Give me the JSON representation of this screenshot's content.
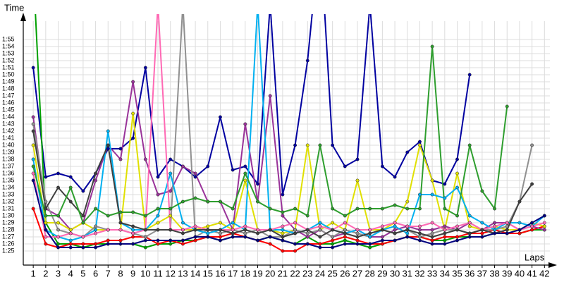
{
  "chart_data": {
    "type": "line",
    "y_label": "Time",
    "x_label": "Laps",
    "x": [
      1,
      2,
      3,
      4,
      5,
      6,
      7,
      8,
      9,
      10,
      11,
      12,
      13,
      14,
      15,
      16,
      17,
      18,
      19,
      20,
      21,
      22,
      23,
      24,
      25,
      26,
      27,
      28,
      29,
      30,
      31,
      32,
      33,
      34,
      35,
      36,
      37,
      38,
      39,
      40,
      41,
      42
    ],
    "xlim": [
      0.2,
      43
    ],
    "xticks": [
      1,
      2,
      3,
      4,
      5,
      6,
      7,
      8,
      9,
      10,
      11,
      12,
      13,
      14,
      15,
      16,
      17,
      18,
      19,
      20,
      21,
      22,
      23,
      24,
      25,
      26,
      27,
      28,
      29,
      30,
      31,
      32,
      33,
      34,
      35,
      36,
      37,
      38,
      39,
      40,
      41,
      42
    ],
    "ylim": [
      83,
      118.6
    ],
    "yticks": [
      {
        "value": 85,
        "label": "1:25"
      },
      {
        "value": 86,
        "label": "1:26"
      },
      {
        "value": 87,
        "label": "1:27"
      },
      {
        "value": 88,
        "label": "1:28"
      },
      {
        "value": 89,
        "label": "1:29"
      },
      {
        "value": 90,
        "label": "1:30"
      },
      {
        "value": 91,
        "label": "1:31"
      },
      {
        "value": 92,
        "label": "1:32"
      },
      {
        "value": 93,
        "label": "1:33"
      },
      {
        "value": 94,
        "label": "1:34"
      },
      {
        "value": 95,
        "label": "1:35"
      },
      {
        "value": 96,
        "label": "1:36"
      },
      {
        "value": 97,
        "label": "1:37"
      },
      {
        "value": 98,
        "label": "1:38"
      },
      {
        "value": 99,
        "label": "1:39"
      },
      {
        "value": 100,
        "label": "1:40"
      },
      {
        "value": 101,
        "label": "1:41"
      },
      {
        "value": 102,
        "label": "1:42"
      },
      {
        "value": 103,
        "label": "1:43"
      },
      {
        "value": 104,
        "label": "1:44"
      },
      {
        "value": 105,
        "label": "1:45"
      },
      {
        "value": 106,
        "label": "1:46"
      },
      {
        "value": 107,
        "label": "1:47"
      },
      {
        "value": 108,
        "label": "1:48"
      },
      {
        "value": 109,
        "label": "1:49"
      },
      {
        "value": 110,
        "label": "1:50"
      },
      {
        "value": 111,
        "label": "1:51"
      },
      {
        "value": 112,
        "label": "1:52"
      },
      {
        "value": 113,
        "label": "1:53"
      },
      {
        "value": 114,
        "label": "1:54"
      },
      {
        "value": 115,
        "label": "1:55"
      }
    ],
    "grid": true,
    "series": [
      {
        "color": "#0000a0",
        "values": [
          111,
          95.5,
          96,
          95.5,
          93.5,
          96,
          99.5,
          99.5,
          101,
          111,
          95.5,
          98,
          97,
          95.5,
          97,
          104,
          96.5,
          97,
          94.5,
          120,
          93,
          100,
          112,
          130,
          100,
          97,
          98,
          120,
          97,
          95.5,
          99,
          100.5,
          95,
          94.5,
          98,
          110,
          null,
          null,
          null,
          null,
          null,
          null
        ]
      },
      {
        "color": "#00a000",
        "values": [
          125,
          89,
          86,
          86,
          85.5,
          86,
          86,
          86,
          86,
          85.5,
          86,
          86,
          86.5,
          86.5,
          87,
          86.5,
          87,
          87,
          86.5,
          87,
          86.5,
          86,
          87,
          86,
          86,
          86.5,
          86,
          85.5,
          86,
          86.5,
          87,
          87,
          86.5,
          86.5,
          87,
          87,
          87,
          87.5,
          87.5,
          87.5,
          88,
          88
        ]
      },
      {
        "color": "#ff0000",
        "values": [
          91,
          86,
          85.5,
          86,
          86,
          86,
          86.5,
          86.5,
          87,
          87,
          86,
          86.5,
          86,
          86.5,
          87,
          87,
          87.5,
          87,
          86.5,
          86,
          85,
          85,
          86,
          86,
          86.5,
          87,
          86.5,
          86,
          86,
          86.5,
          87,
          87,
          86.5,
          87,
          87,
          87.5,
          87.5,
          88,
          87.5,
          87.5,
          88,
          88.5
        ]
      },
      {
        "color": "#993399",
        "values": [
          104,
          91,
          90,
          88,
          89,
          95,
          100,
          98,
          109,
          98,
          93,
          93.5,
          97,
          96,
          92,
          92,
          88,
          103,
          92,
          107,
          90,
          88,
          87,
          88,
          87,
          87.5,
          88,
          87,
          87,
          88,
          88.5,
          88,
          88,
          88.5,
          88,
          89,
          88,
          89,
          89,
          88,
          88.5,
          88
        ]
      },
      {
        "color": "#e0e000",
        "values": [
          100,
          89,
          89,
          88,
          89,
          88,
          88,
          88,
          104.5,
          88,
          89,
          90,
          88,
          88,
          88.5,
          89,
          88,
          95,
          88,
          88,
          87.5,
          88,
          100,
          88,
          89,
          88,
          95,
          88,
          88,
          89,
          92,
          100,
          95,
          88,
          96,
          88.5,
          88,
          88.5,
          88,
          88,
          89,
          88.5
        ]
      },
      {
        "color": "#909090",
        "values": [
          103,
          92,
          88,
          87.5,
          87,
          88.5,
          88,
          88,
          87.5,
          87,
          88,
          88,
          120,
          87,
          88,
          87.5,
          88,
          87.5,
          88,
          87,
          87,
          88,
          87.5,
          88,
          87,
          88,
          87.5,
          87,
          88,
          87.5,
          88,
          87,
          87.5,
          88,
          88,
          87.5,
          88,
          88,
          88.5,
          92,
          100,
          null
        ]
      },
      {
        "color": "#00b0f0",
        "values": [
          98,
          88,
          87,
          86.5,
          87,
          88,
          102,
          89,
          88,
          88,
          90,
          96,
          89,
          88,
          87.5,
          88,
          89,
          88,
          120,
          88,
          88,
          87.5,
          88,
          89,
          88,
          87.5,
          88,
          87,
          88,
          88.5,
          87.5,
          93,
          93,
          92.5,
          94,
          90,
          89,
          88,
          89,
          89,
          88.5,
          90
        ]
      },
      {
        "color": "#ff69b4",
        "values": [
          96,
          87,
          87,
          87.5,
          87,
          87.5,
          88,
          88,
          87.5,
          88,
          120,
          88,
          88,
          88.5,
          88,
          88,
          88,
          88.5,
          88,
          88,
          88.5,
          89,
          88,
          88.5,
          88,
          89,
          88,
          88,
          88.5,
          89,
          88.5,
          88.5,
          89,
          88,
          88.5,
          89,
          88,
          88.5,
          89,
          88,
          88.5,
          89
        ]
      },
      {
        "color": "#404040",
        "values": [
          102,
          91,
          94,
          92,
          90,
          96,
          100,
          89,
          88.5,
          88,
          88,
          88,
          87.5,
          88,
          88,
          88,
          87.5,
          88,
          87.5,
          88,
          87,
          87.5,
          88,
          87,
          88,
          87.5,
          87,
          87.5,
          88,
          87.5,
          88,
          87.5,
          87,
          87.5,
          88,
          87.5,
          88,
          87.5,
          88,
          92,
          94.5,
          null
        ]
      },
      {
        "color": "#2e9e2e",
        "values": [
          97,
          90,
          90,
          94,
          89,
          91,
          90,
          90.5,
          90.5,
          90,
          91,
          91,
          92,
          92.5,
          92,
          92,
          91,
          96,
          92,
          91,
          90.5,
          91,
          90,
          100,
          91,
          90,
          91,
          91,
          91,
          91.5,
          91,
          91,
          114,
          91,
          90,
          100,
          93.5,
          91,
          105.5,
          null,
          null,
          null
        ]
      },
      {
        "color": "#000080",
        "values": [
          95,
          88,
          85.5,
          85.5,
          85.5,
          85.5,
          86,
          86,
          86,
          86.5,
          86.5,
          86.5,
          86.5,
          87,
          87,
          86.5,
          87,
          87,
          86.5,
          87,
          86.5,
          86,
          86,
          85.5,
          85.5,
          86,
          86,
          86,
          86.5,
          86.5,
          87,
          86.5,
          86,
          86,
          86.5,
          87,
          87,
          87.5,
          87.5,
          88,
          89,
          90
        ]
      }
    ]
  }
}
